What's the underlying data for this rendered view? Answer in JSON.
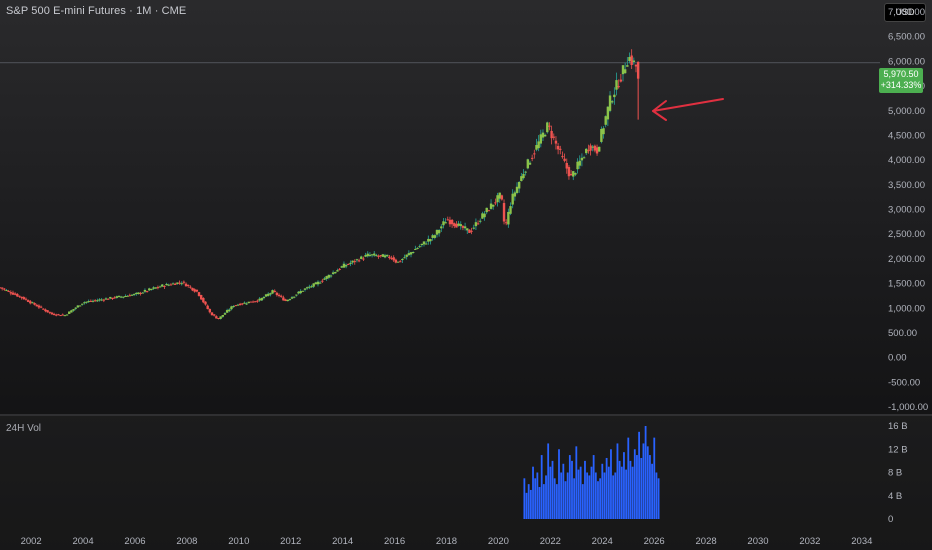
{
  "header": {
    "title": "S&P 500 E-mini Futures · 1M · CME",
    "currency": "USD"
  },
  "last_price": {
    "value": "5,970.50",
    "change": "+314.33%",
    "color": "#4caf50"
  },
  "volume_panel": {
    "label": "24H Vol"
  },
  "colors": {
    "up": "#26a69a",
    "up_body": "#8bc34a",
    "down": "#ef5350",
    "volume": "#2962ff",
    "annotation": "#e03040"
  },
  "chart_data": [
    {
      "type": "candlestick",
      "title": "S&P 500 E-mini Futures · 1M · CME",
      "xlabel": "",
      "ylabel": "",
      "ylim": [
        -1000,
        7000
      ],
      "y_ticks": [
        "7,000.00",
        "6,500.00",
        "6,000.00",
        "5,500.00",
        "5,000.00",
        "4,500.00",
        "4,000.00",
        "3,500.00",
        "3,000.00",
        "2,500.00",
        "2,000.00",
        "1,500.00",
        "1,000.00",
        "500.00",
        "0.00",
        "-500.00",
        "-1,000.00"
      ],
      "y_tick_values": [
        7000,
        6500,
        6000,
        5500,
        5000,
        4500,
        4000,
        3500,
        3000,
        2500,
        2000,
        1500,
        1000,
        500,
        0,
        -500,
        -1000
      ],
      "x_ticks": [
        "2002",
        "2004",
        "2006",
        "2008",
        "2010",
        "2012",
        "2014",
        "2016",
        "2018",
        "2020",
        "2022",
        "2024",
        "2026",
        "2028",
        "2030",
        "2032",
        "2034"
      ],
      "x_tick_values": [
        2002,
        2004,
        2006,
        2008,
        2010,
        2012,
        2014,
        2016,
        2018,
        2020,
        2022,
        2024,
        2026,
        2028,
        2030,
        2032,
        2034
      ],
      "xlim": [
        2000.8,
        2034.7
      ],
      "grid": false,
      "anchor_points": [
        [
          2000.8,
          1420
        ],
        [
          2001.7,
          1200
        ],
        [
          2002.8,
          880
        ],
        [
          2003.3,
          860
        ],
        [
          2004.0,
          1120
        ],
        [
          2005.0,
          1200
        ],
        [
          2006.0,
          1280
        ],
        [
          2007.0,
          1450
        ],
        [
          2007.8,
          1530
        ],
        [
          2008.4,
          1330
        ],
        [
          2008.9,
          900
        ],
        [
          2009.2,
          780
        ],
        [
          2009.8,
          1060
        ],
        [
          2010.8,
          1170
        ],
        [
          2011.3,
          1340
        ],
        [
          2011.8,
          1150
        ],
        [
          2012.5,
          1380
        ],
        [
          2013.0,
          1500
        ],
        [
          2014.0,
          1850
        ],
        [
          2015.0,
          2080
        ],
        [
          2015.9,
          2030
        ],
        [
          2016.1,
          1920
        ],
        [
          2016.8,
          2200
        ],
        [
          2017.5,
          2450
        ],
        [
          2018.0,
          2800
        ],
        [
          2018.9,
          2550
        ],
        [
          2019.5,
          2950
        ],
        [
          2020.1,
          3300
        ],
        [
          2020.25,
          2600
        ],
        [
          2020.5,
          3200
        ],
        [
          2021.0,
          3800
        ],
        [
          2021.9,
          4700
        ],
        [
          2022.4,
          4100
        ],
        [
          2022.8,
          3650
        ],
        [
          2023.5,
          4300
        ],
        [
          2023.8,
          4200
        ],
        [
          2024.3,
          5200
        ],
        [
          2024.8,
          5800
        ],
        [
          2025.0,
          6100
        ],
        [
          2025.3,
          5900
        ]
      ],
      "last_value": 5970.5
    },
    {
      "type": "bar",
      "title": "24H Vol",
      "ylim": [
        0,
        16
      ],
      "y_ticks": [
        "16 B",
        "12 B",
        "8 B",
        "4 B",
        "0"
      ],
      "y_tick_values": [
        16,
        12,
        8,
        4,
        0
      ],
      "x_start": 2021.0,
      "x_step": 0.0834,
      "values": [
        7,
        4.5,
        6,
        5,
        9,
        7,
        8,
        5.5,
        11,
        6,
        7.5,
        13,
        9,
        10,
        7,
        6,
        12,
        8,
        9.5,
        6.5,
        8,
        11,
        10,
        7,
        12.5,
        8.5,
        9,
        6,
        10,
        8,
        7.5,
        9,
        11,
        8,
        6.5,
        7,
        9.5,
        8,
        10.5,
        9,
        12,
        7.5,
        8,
        13,
        10,
        9,
        11.5,
        8.5,
        14,
        10,
        9,
        12,
        11,
        15,
        10.5,
        13,
        16,
        12.5,
        11,
        9.5,
        14,
        8,
        7
      ]
    }
  ]
}
